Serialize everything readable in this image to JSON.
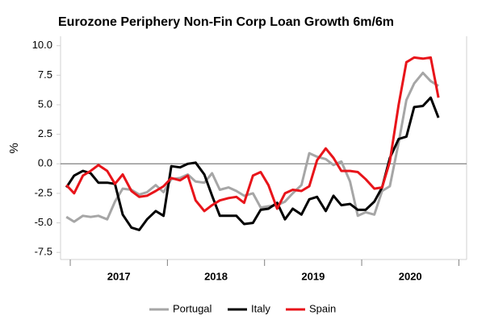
{
  "chart_data": {
    "type": "line",
    "title": "Eurozone Periphery Non-Fin Corp Loan Growth 6m/6m",
    "ylabel": "%",
    "x": [
      2016.96,
      2017.04,
      2017.13,
      2017.21,
      2017.29,
      2017.38,
      2017.46,
      2017.54,
      2017.63,
      2017.71,
      2017.79,
      2017.88,
      2017.96,
      2018.04,
      2018.13,
      2018.21,
      2018.29,
      2018.38,
      2018.46,
      2018.54,
      2018.63,
      2018.71,
      2018.79,
      2018.88,
      2018.96,
      2019.04,
      2019.13,
      2019.21,
      2019.29,
      2019.38,
      2019.46,
      2019.54,
      2019.63,
      2019.71,
      2019.79,
      2019.88,
      2019.96,
      2020.04,
      2020.13,
      2020.21,
      2020.29,
      2020.38,
      2020.46,
      2020.54,
      2020.63,
      2020.71,
      2020.79
    ],
    "series": [
      {
        "name": "Portugal",
        "color": "#a6a6a6",
        "values": [
          -4.5,
          -4.9,
          -4.4,
          -4.5,
          -4.4,
          -4.7,
          -3.2,
          -2.1,
          -2.2,
          -2.6,
          -2.4,
          -1.8,
          -2.4,
          -1.3,
          -1.2,
          -0.9,
          -1.5,
          -1.6,
          -0.8,
          -2.2,
          -2.0,
          -2.3,
          -2.7,
          -2.5,
          -3.7,
          -3.6,
          -3.5,
          -3.2,
          -2.5,
          -1.8,
          0.9,
          0.6,
          0.4,
          -0.1,
          0.2,
          -1.5,
          -4.4,
          -4.1,
          -4.3,
          -2.3,
          -1.9,
          1.8,
          5.4,
          6.8,
          7.7,
          7.0,
          6.6
        ]
      },
      {
        "name": "Italy",
        "color": "#000000",
        "values": [
          -2.0,
          -1.0,
          -0.6,
          -0.8,
          -1.6,
          -1.6,
          -1.7,
          -4.3,
          -5.4,
          -5.6,
          -4.7,
          -4.0,
          -4.4,
          -0.2,
          -0.3,
          0.0,
          0.1,
          -0.9,
          -2.7,
          -4.4,
          -4.4,
          -4.4,
          -5.1,
          -5.0,
          -3.9,
          -3.8,
          -3.3,
          -4.7,
          -3.8,
          -4.3,
          -3.0,
          -2.8,
          -4.0,
          -2.7,
          -3.5,
          -3.4,
          -3.9,
          -3.9,
          -3.2,
          -2.0,
          0.5,
          2.1,
          2.3,
          4.8,
          4.9,
          5.6,
          3.9
        ]
      },
      {
        "name": "Spain",
        "color": "#e8141a",
        "values": [
          -1.8,
          -2.5,
          -1.0,
          -0.6,
          -0.1,
          -0.6,
          -1.7,
          -0.9,
          -2.3,
          -2.8,
          -2.7,
          -2.3,
          -1.9,
          -1.2,
          -1.4,
          -1.0,
          -3.1,
          -4.0,
          -3.5,
          -3.1,
          -2.9,
          -2.8,
          -3.3,
          -1.0,
          -0.7,
          -1.8,
          -3.8,
          -2.5,
          -2.2,
          -2.3,
          -1.9,
          0.3,
          1.3,
          0.5,
          -0.6,
          -0.6,
          -0.7,
          -1.3,
          -2.1,
          -2.0,
          0.2,
          5.0,
          8.6,
          9.0,
          8.9,
          9.0,
          5.6
        ]
      }
    ],
    "xlim": [
      2016.9,
      2021.08
    ],
    "xticks": [
      {
        "value": 2017.5,
        "label": "2017"
      },
      {
        "value": 2018.5,
        "label": "2018"
      },
      {
        "value": 2019.5,
        "label": "2019"
      },
      {
        "value": 2020.5,
        "label": "2020"
      }
    ],
    "ylim": [
      -8.1,
      10.8
    ],
    "yticks": [
      {
        "value": 10,
        "label": "10.0"
      },
      7.5,
      {
        "value": 5,
        "label": "5.0"
      },
      2.5,
      {
        "value": 0,
        "label": "0.0"
      },
      -2.5,
      {
        "value": -5,
        "label": "-5.0"
      },
      -7.5
    ],
    "legend": "bottom"
  }
}
